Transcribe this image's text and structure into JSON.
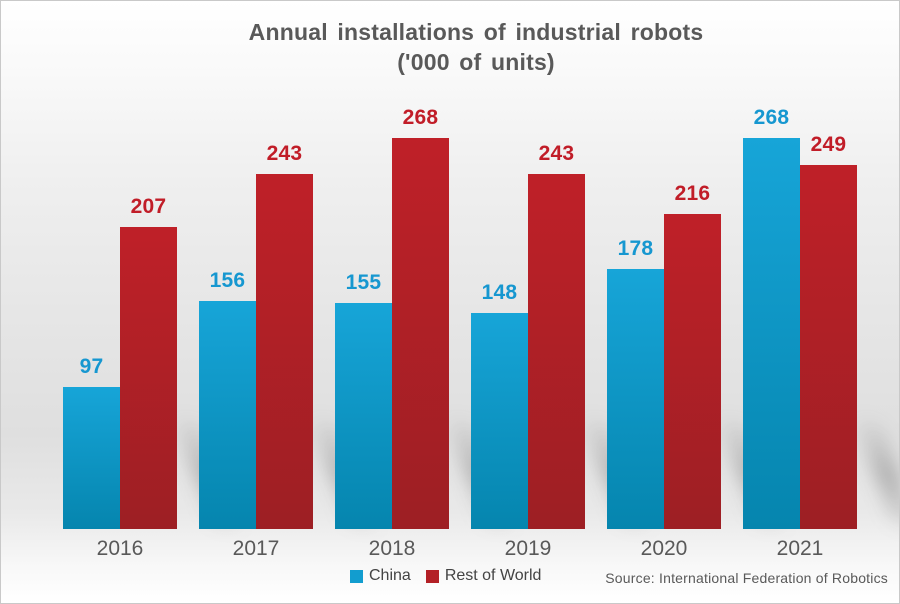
{
  "chart_data": {
    "type": "bar",
    "title": "Annual installations of industrial robots",
    "subtitle": "('000 of units)",
    "categories": [
      "2016",
      "2017",
      "2018",
      "2019",
      "2020",
      "2021"
    ],
    "series": [
      {
        "name": "China",
        "color": "#129dcf",
        "color_top": "#17a5d8",
        "color_bottom": "#0585ae",
        "label_color": "#1697d0",
        "values": [
          97,
          156,
          155,
          148,
          178,
          268
        ]
      },
      {
        "name": "Rest of World",
        "color": "#b32026",
        "color_top": "#bf2028",
        "color_bottom": "#9d1f24",
        "label_color": "#c11d28",
        "values": [
          207,
          243,
          268,
          243,
          216,
          249
        ]
      }
    ],
    "ylim": [
      0,
      280
    ],
    "grid": false,
    "value_labels": true,
    "legend_position": "bottom",
    "title_color": "#595959",
    "axis_label_color": "#595959"
  },
  "legend": {
    "items": [
      {
        "label": "China",
        "color": "#129dcf"
      },
      {
        "label": "Rest of World",
        "color": "#b32026"
      }
    ]
  },
  "footer": {
    "source_text": "Source: International Federation of Robotics"
  }
}
